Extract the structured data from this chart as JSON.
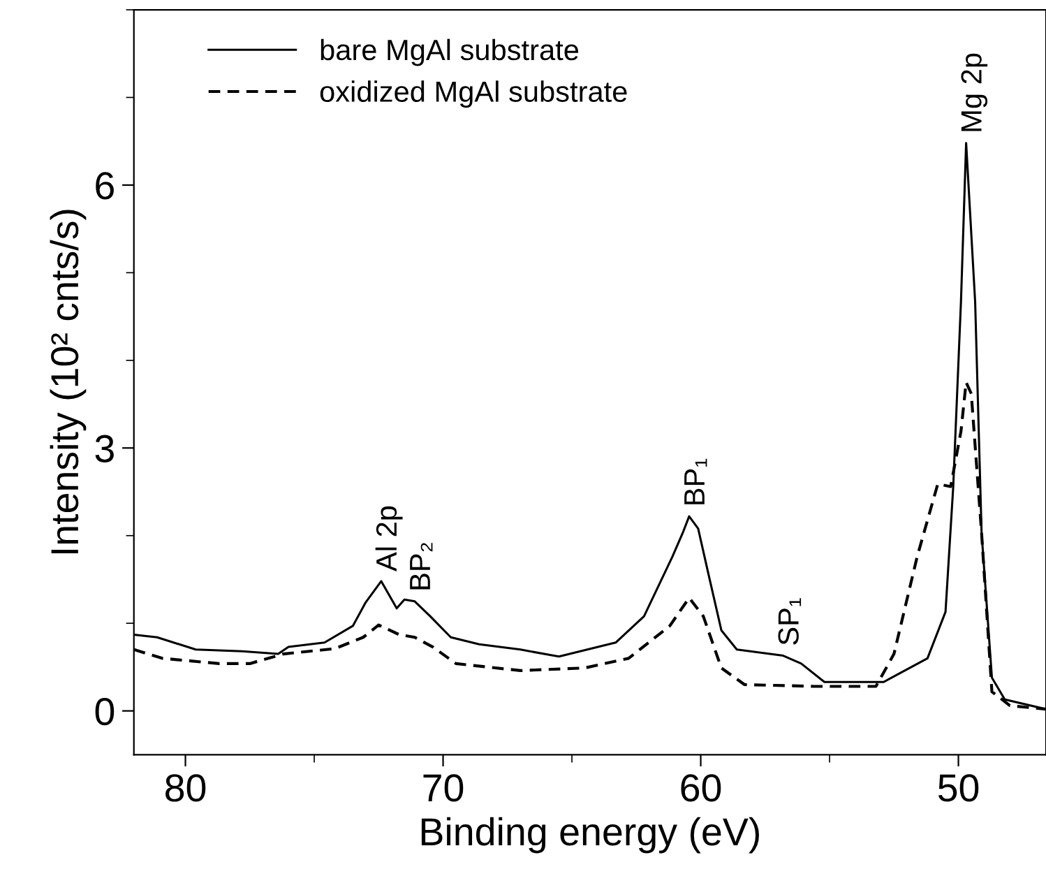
{
  "chart_data": {
    "type": "line",
    "xlabel": "Binding energy (eV)",
    "ylabel": "Intensity (10² cnts/s)",
    "xlim": [
      82,
      46.6
    ],
    "xticks": [
      80,
      70,
      60,
      50
    ],
    "ylim": [
      -0.5,
      8
    ],
    "yticks": [
      0,
      3,
      6
    ],
    "legend": "top left",
    "grid": false,
    "series": [
      {
        "name": "bare MgAl substrate",
        "color": "#000000",
        "line_style": "solid",
        "x": [
          82.0,
          81.1,
          79.6,
          77.8,
          76.4,
          76.0,
          74.6,
          73.5,
          73.0,
          72.4,
          71.8,
          71.5,
          71.1,
          70.5,
          69.7,
          68.6,
          67.0,
          65.7,
          65.5,
          63.3,
          62.2,
          61.1,
          60.7,
          60.45,
          60.1,
          59.7,
          59.2,
          58.6,
          56.8,
          56.1,
          55.2,
          52.9,
          51.2,
          50.5,
          50.2,
          49.9,
          49.7,
          49.35,
          49.1,
          48.7,
          48.2,
          46.6
        ],
        "values": [
          0.87,
          0.84,
          0.7,
          0.68,
          0.65,
          0.73,
          0.78,
          0.97,
          1.24,
          1.48,
          1.17,
          1.27,
          1.25,
          1.08,
          0.84,
          0.76,
          0.7,
          0.63,
          0.62,
          0.78,
          1.08,
          1.76,
          2.03,
          2.22,
          2.08,
          1.56,
          0.92,
          0.7,
          0.63,
          0.54,
          0.33,
          0.33,
          0.6,
          1.13,
          2.56,
          4.67,
          6.48,
          4.67,
          2.03,
          0.38,
          0.13,
          0.02
        ]
      },
      {
        "name": "oxidized MgAl substrate",
        "color": "#000000",
        "line_style": "dashed",
        "x": [
          82.0,
          80.9,
          78.7,
          77.5,
          76.2,
          74.2,
          73.1,
          72.5,
          71.7,
          71.1,
          70.4,
          69.5,
          67.0,
          64.5,
          62.8,
          61.2,
          60.45,
          59.9,
          59.2,
          58.3,
          55.6,
          53.2,
          52.5,
          51.6,
          50.8,
          50.3,
          49.9,
          49.7,
          49.5,
          49.1,
          48.7,
          48.0,
          46.6
        ],
        "values": [
          0.7,
          0.6,
          0.54,
          0.54,
          0.65,
          0.71,
          0.84,
          0.98,
          0.87,
          0.84,
          0.73,
          0.54,
          0.46,
          0.49,
          0.6,
          0.97,
          1.29,
          1.08,
          0.49,
          0.3,
          0.28,
          0.28,
          0.65,
          1.76,
          2.59,
          2.56,
          3.19,
          3.75,
          3.62,
          2.03,
          0.22,
          0.06,
          0.02
        ]
      }
    ],
    "annotations": [
      {
        "text": "Al 2p",
        "x": 72.4,
        "y": 1.48
      },
      {
        "text": "BP₂",
        "x": 71.1,
        "y": 1.25
      },
      {
        "text": "BP₁",
        "x": 60.45,
        "y": 2.22
      },
      {
        "text": "SP₁",
        "x": 56.8,
        "y": 0.63
      },
      {
        "text": "Mg 2p",
        "x": 49.7,
        "y": 6.48
      }
    ]
  }
}
